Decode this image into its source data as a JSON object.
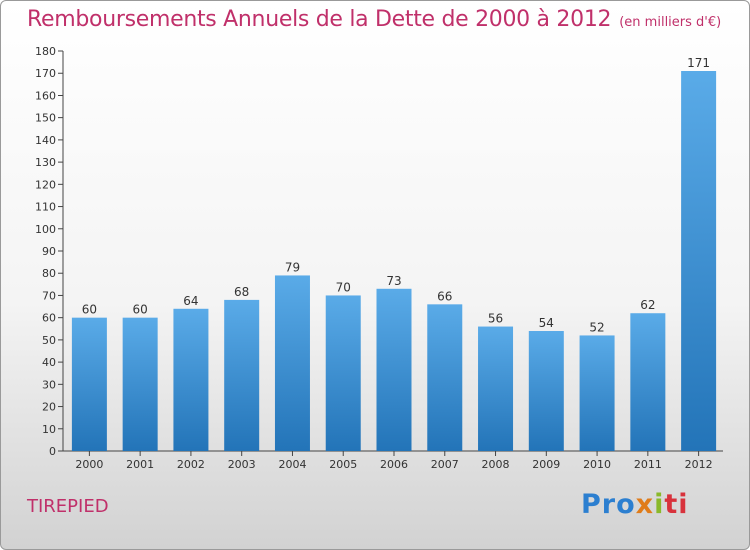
{
  "chart_data": {
    "type": "bar",
    "title": "Remboursements Annuels de la Dette de 2000 à 2012",
    "subtitle": "(en milliers d'€)",
    "categories": [
      "2000",
      "2001",
      "2002",
      "2003",
      "2004",
      "2005",
      "2006",
      "2007",
      "2008",
      "2009",
      "2010",
      "2011",
      "2012"
    ],
    "values": [
      60,
      60,
      64,
      68,
      79,
      70,
      73,
      66,
      56,
      54,
      52,
      62,
      171
    ],
    "ylim": [
      0,
      180
    ],
    "ytick_step": 10,
    "grid": false,
    "bar_color": "#3a8fd6",
    "bar_color_light": "#5aabe8",
    "bar_color_dark": "#2374b8"
  },
  "town": "TIREPIED",
  "logo": {
    "p1": "Pro",
    "p2": "x",
    "p3": "i",
    "p4": "ti"
  },
  "accent_color": "#c0306a"
}
